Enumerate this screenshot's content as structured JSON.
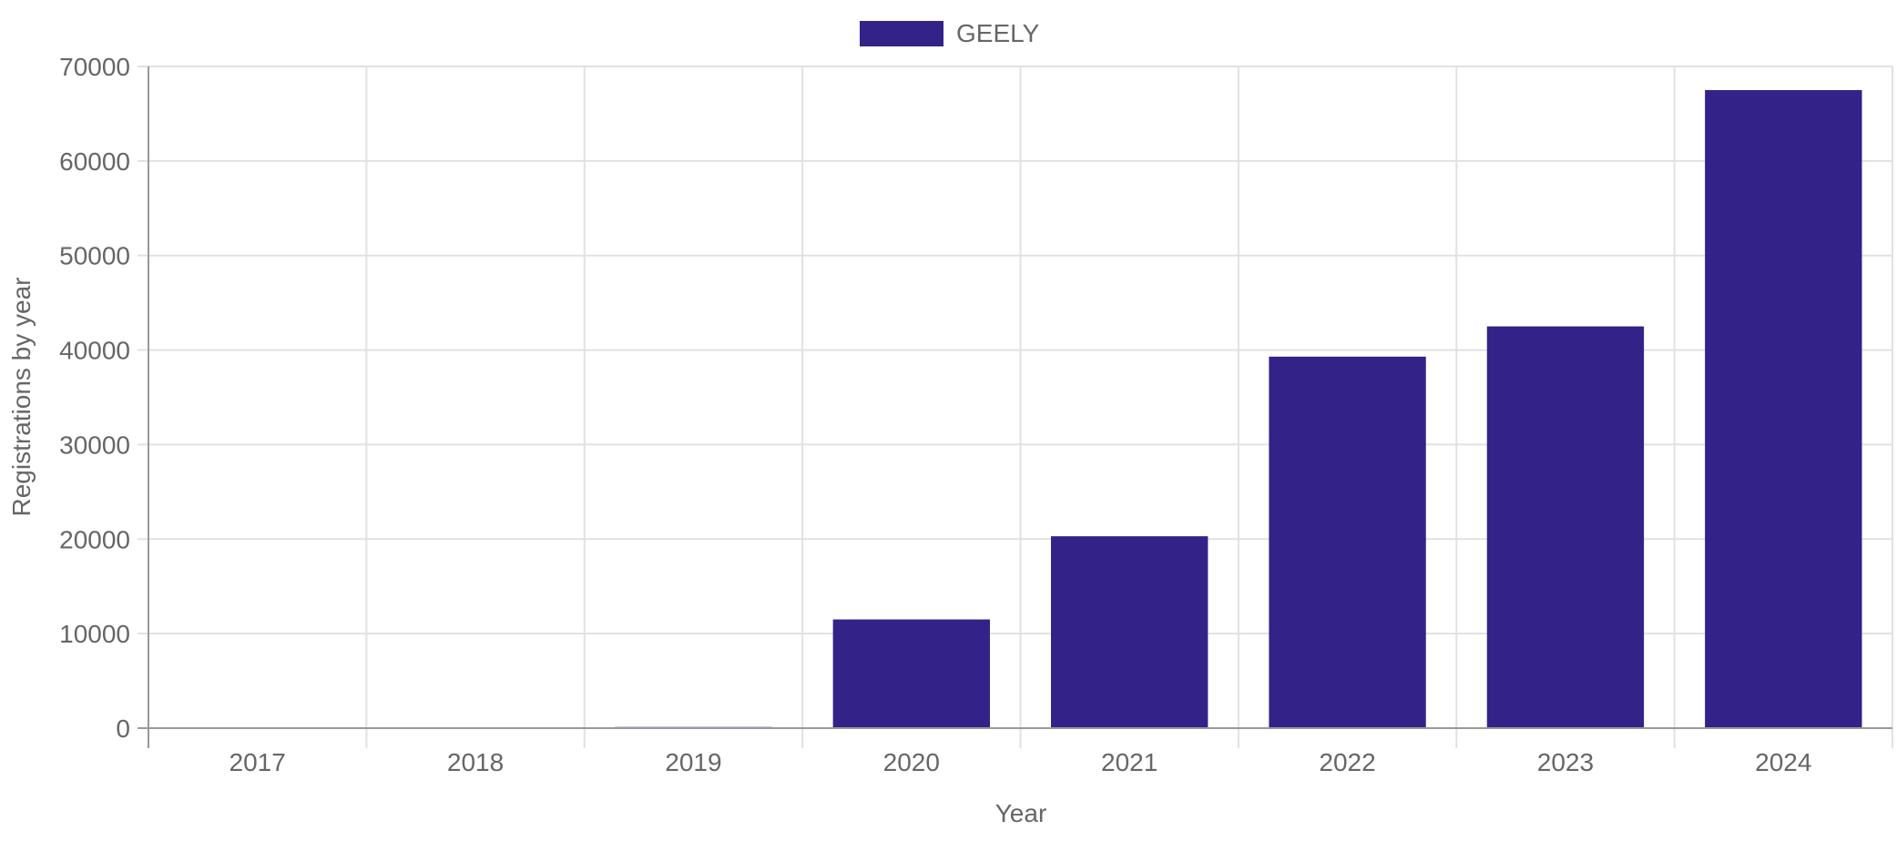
{
  "chart_data": {
    "type": "bar",
    "categories": [
      "2017",
      "2018",
      "2019",
      "2020",
      "2021",
      "2022",
      "2023",
      "2024"
    ],
    "series": [
      {
        "name": "GEELY",
        "color": "#332288",
        "values": [
          5,
          20,
          120,
          11500,
          20300,
          39300,
          42500,
          67500
        ]
      }
    ],
    "xlabel": "Year",
    "ylabel": "Registrations by year",
    "ylim": [
      0,
      70000
    ],
    "yticks": [
      "0",
      "10000",
      "20000",
      "30000",
      "40000",
      "50000",
      "60000",
      "70000"
    ],
    "grid": true,
    "legend_position": "top-center"
  }
}
